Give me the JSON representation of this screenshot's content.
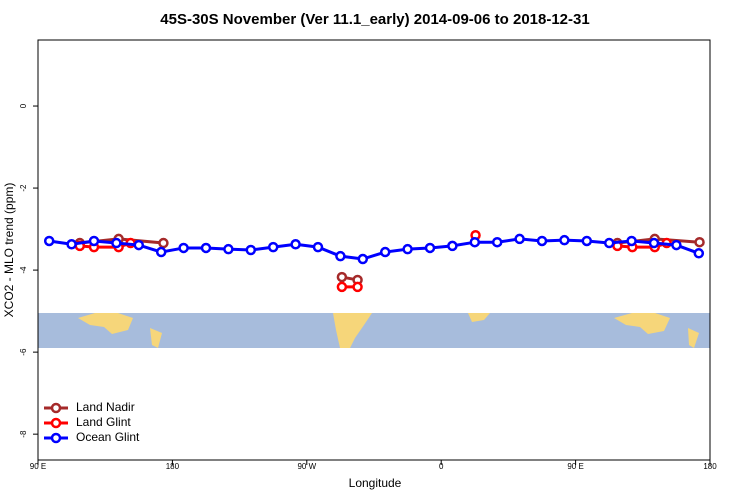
{
  "chart_data": {
    "type": "line",
    "title": "45S-30S November (Ver 11.1_early)   2014-09-06 to 2018-12-31",
    "x_label": "Longitude",
    "y_label": "XCO2 - MLO trend (ppm)",
    "xlim": [
      90,
      540
    ],
    "ylim": [
      -8.63,
      1.61
    ],
    "xticks": [
      {
        "value": 90,
        "label": "90 E"
      },
      180,
      {
        "value": 270,
        "label": "90 W"
      },
      {
        "value": 360,
        "label": "0"
      },
      {
        "value": 450,
        "label": "90 E"
      },
      {
        "value": 540,
        "label": "180"
      }
    ],
    "yticks": [
      0,
      -2,
      -4,
      -6,
      -8
    ],
    "legend": "bottom-left",
    "series": [
      {
        "name": "Land Nadir",
        "color": "#a52a2a",
        "x": [
          118,
          144,
          174,
          null,
          293.5,
          304,
          null,
          478,
          503,
          533
        ],
        "values": [
          -3.34,
          -3.24,
          -3.34,
          null,
          -4.17,
          -4.24,
          null,
          -3.34,
          -3.24,
          -3.32
        ]
      },
      {
        "name": "Land Glint",
        "color": "#ff0000",
        "x": [
          118,
          127.5,
          144,
          152,
          null,
          293.5,
          304,
          null,
          383,
          null,
          478,
          488,
          503,
          511
        ],
        "values": [
          -3.41,
          -3.44,
          -3.44,
          -3.34,
          null,
          -4.41,
          -4.41,
          null,
          -3.15,
          null,
          -3.41,
          -3.44,
          -3.44,
          -3.34
        ]
      },
      {
        "name": "Ocean Glint",
        "color": "#0000ff",
        "x": [
          97.5,
          112.5,
          127.5,
          142.5,
          157.5,
          172.5,
          187.5,
          202.5,
          217.5,
          232.5,
          247.5,
          262.5,
          277.5,
          292.5,
          307.5,
          322.5,
          337.5,
          352.5,
          367.5,
          382.5,
          397.5,
          412.5,
          427.5,
          442.5,
          457.5,
          472.5,
          487.5,
          502.5,
          517.5,
          532.5
        ],
        "values": [
          -3.29,
          -3.37,
          -3.29,
          -3.34,
          -3.39,
          -3.56,
          -3.46,
          -3.46,
          -3.49,
          -3.51,
          -3.44,
          -3.37,
          -3.44,
          -3.66,
          -3.73,
          -3.56,
          -3.49,
          -3.46,
          -3.41,
          -3.32,
          -3.32,
          -3.24,
          -3.29,
          -3.27,
          -3.29,
          -3.34,
          -3.29,
          -3.34,
          -3.39,
          -3.59
        ]
      }
    ]
  }
}
